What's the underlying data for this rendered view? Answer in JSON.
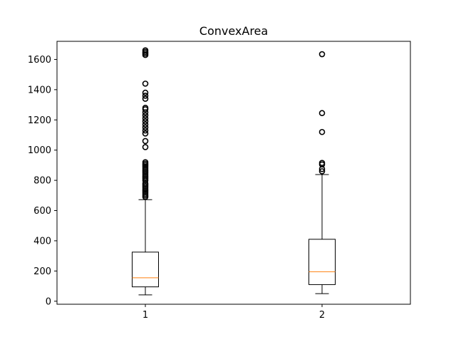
{
  "chart_data": {
    "type": "boxplot",
    "title": "ConvexArea",
    "xlabel": "",
    "ylabel": "",
    "categories": [
      "1",
      "2"
    ],
    "ylim": [
      -20,
      1720
    ],
    "yticks": [
      0,
      200,
      400,
      600,
      800,
      1000,
      1200,
      1400,
      1600
    ],
    "grid": false,
    "series": [
      {
        "name": "1",
        "whisker_low": 42,
        "q1": 95,
        "median": 155,
        "q3": 325,
        "whisker_high": 672,
        "outliers": [
          690,
          700,
          710,
          720,
          730,
          740,
          750,
          760,
          770,
          780,
          800,
          810,
          820,
          830,
          840,
          850,
          860,
          870,
          880,
          890,
          900,
          910,
          920,
          1020,
          1060,
          1110,
          1130,
          1150,
          1170,
          1190,
          1210,
          1230,
          1250,
          1270,
          1280,
          1340,
          1360,
          1380,
          1440,
          1630,
          1640,
          1650,
          1660
        ]
      },
      {
        "name": "2",
        "whisker_low": 50,
        "q1": 110,
        "median": 195,
        "q3": 410,
        "whisker_high": 838,
        "outliers": [
          860,
          875,
          905,
          915,
          1120,
          1245,
          1635
        ]
      }
    ],
    "colors": {
      "box": "#000000",
      "median": "#ff7f0e",
      "axis": "#000000"
    }
  }
}
